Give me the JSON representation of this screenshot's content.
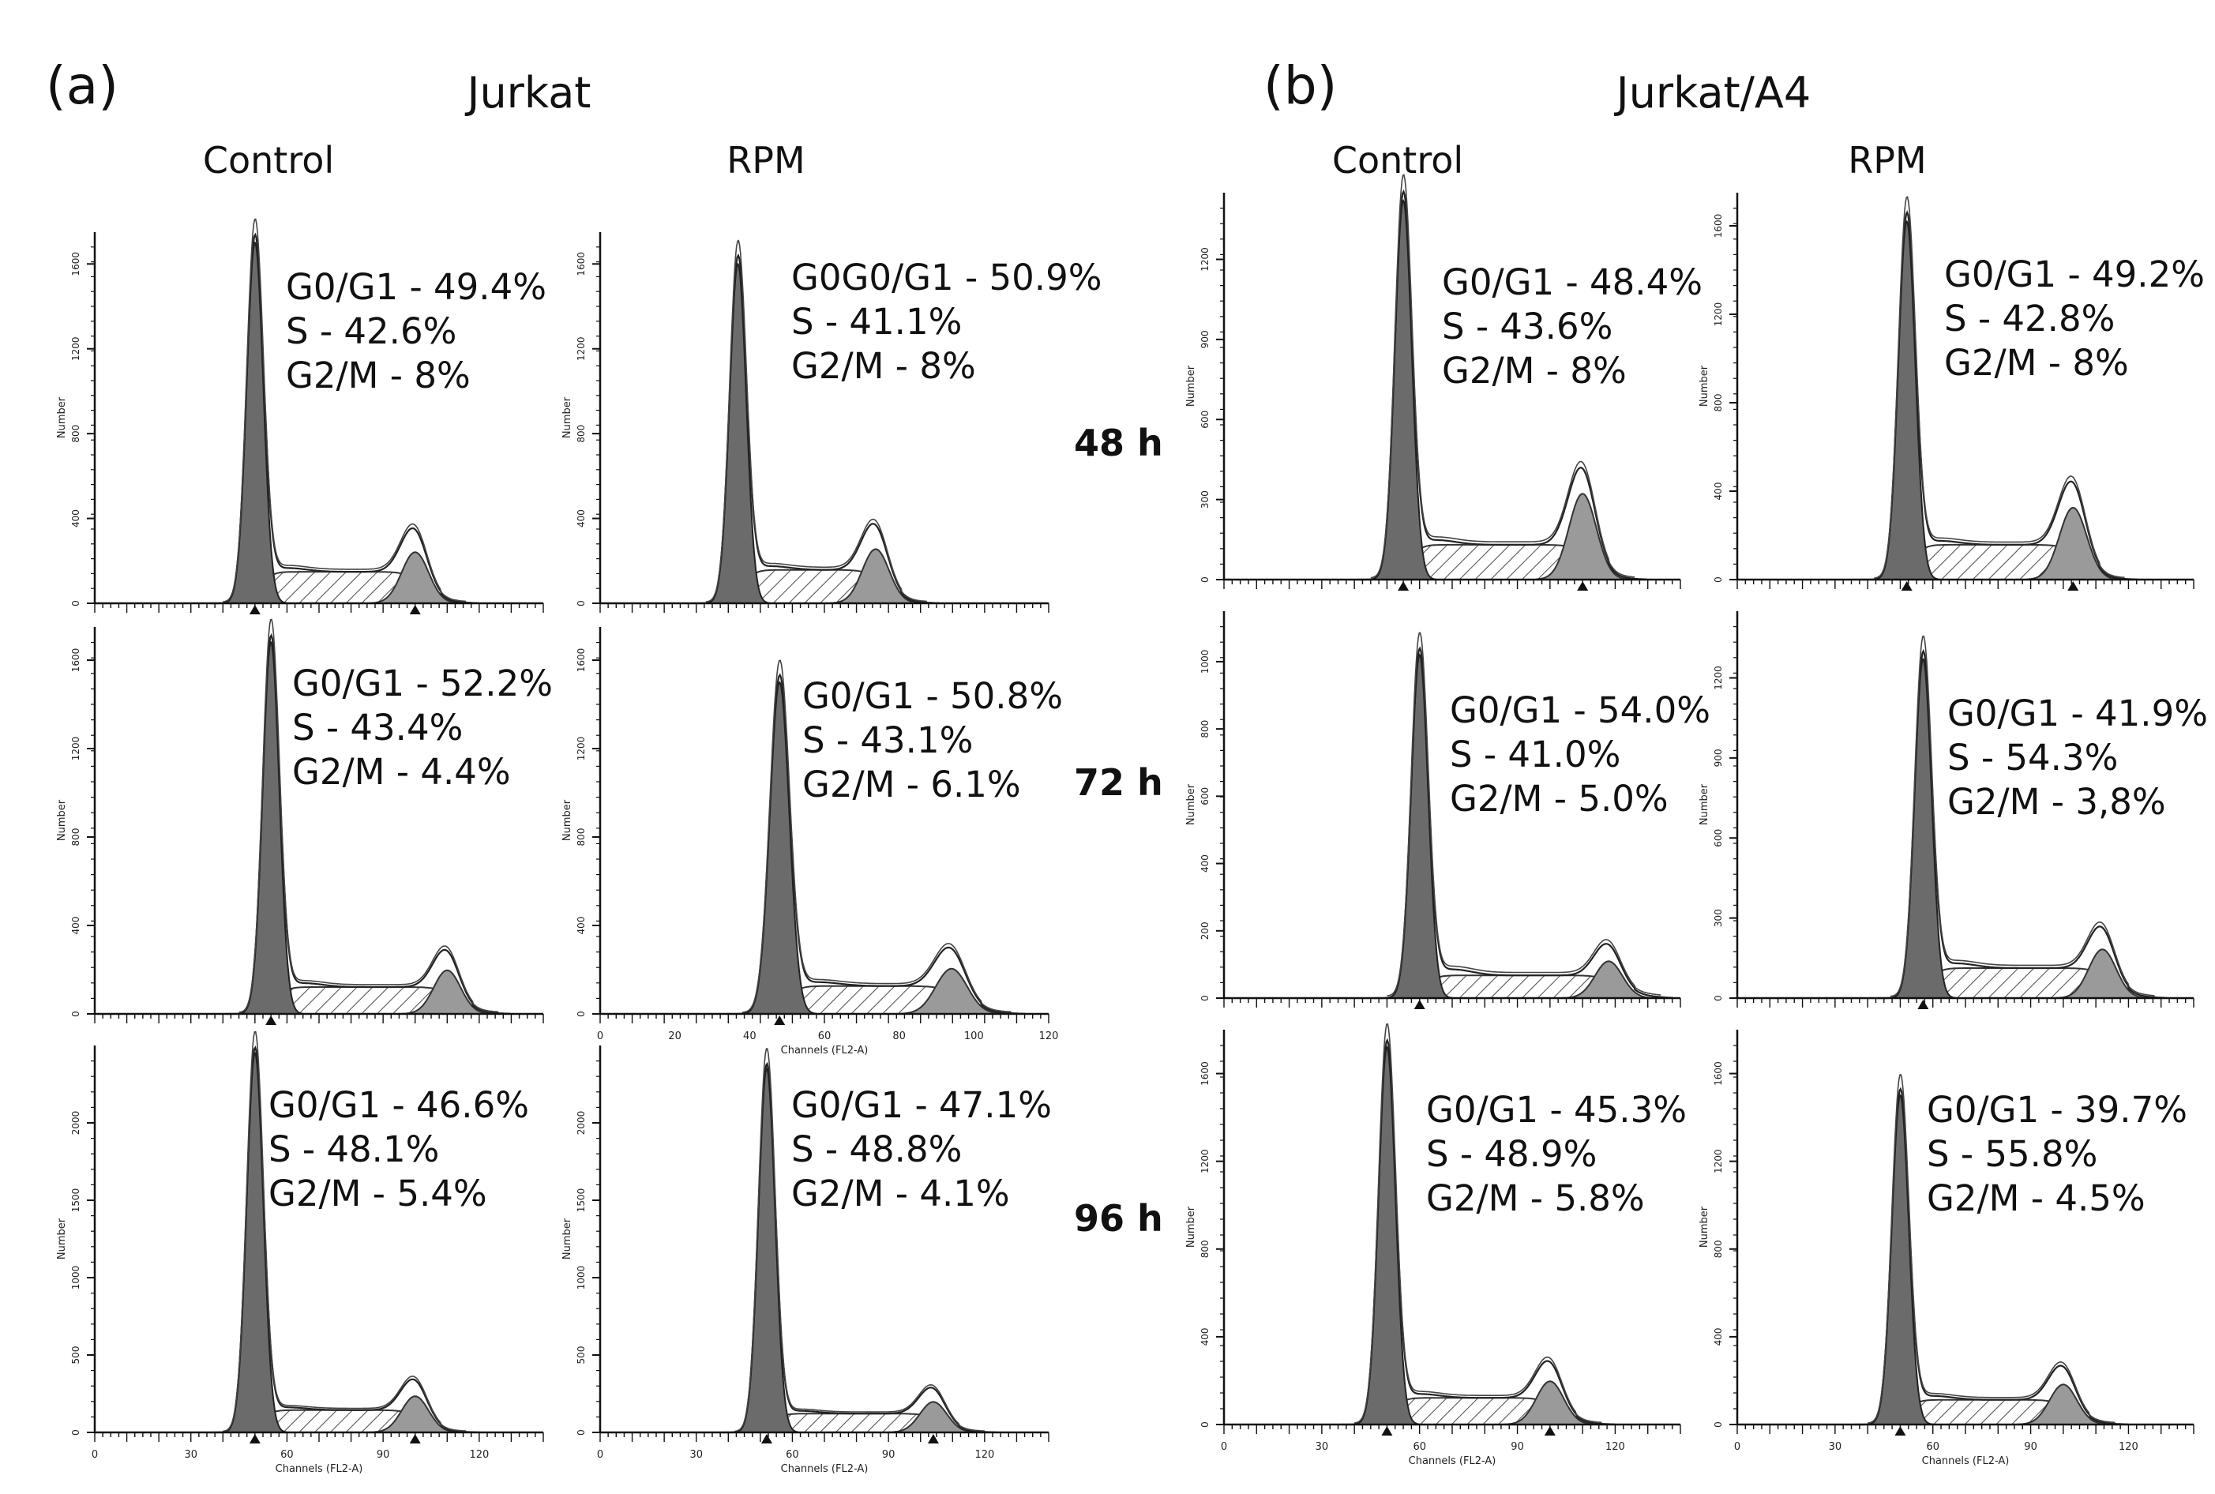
{
  "figure": {
    "panels": [
      {
        "letter": "(a)",
        "title": "Jurkat",
        "columns": [
          "Control",
          "RPM"
        ],
        "plots": [
          {
            "id": "a-control-48",
            "y_ticks": [
              "0",
              "400",
              "800",
              "1200",
              "1600"
            ],
            "y_max": 1750,
            "x_ticks": [],
            "x_label": "",
            "g1": 50,
            "g2": 100,
            "g1_height": 1700,
            "g2_height": 330,
            "markers": [
              50,
              100
            ],
            "stats": [
              "G0/G1 - 49.4%",
              "S - 42.6%",
              "G2/M - 8%"
            ]
          },
          {
            "id": "a-rpm-48",
            "y_ticks": [
              "0",
              "400",
              "800",
              "1200",
              "1600"
            ],
            "y_max": 1750,
            "x_ticks": [],
            "x_label": "",
            "g1": 43,
            "g2": 86,
            "g1_height": 1600,
            "g2_height": 350,
            "markers": [],
            "stats": [
              "G0G0/G1 - 50.9%",
              "S - 41.1%",
              "G2/M - 8%"
            ]
          },
          {
            "id": "a-control-72",
            "y_ticks": [
              "0",
              "400",
              "800",
              "1200",
              "1600"
            ],
            "y_max": 1750,
            "x_ticks": [],
            "x_label": "",
            "g1": 55,
            "g2": 110,
            "g1_height": 1680,
            "g2_height": 270,
            "markers": [
              55
            ],
            "stats": [
              "G0/G1 - 52.2%",
              "S - 43.4%",
              "G2/M - 4.4%"
            ]
          },
          {
            "id": "a-rpm-72",
            "y_ticks": [
              "0",
              "400",
              "800",
              "1200",
              "1600"
            ],
            "y_max": 1750,
            "x_ticks": [
              "0",
              "20",
              "40",
              "60",
              "80",
              "100",
              "120"
            ],
            "x_label": "Channels (FL2-A)",
            "x_max": 120,
            "g1": 48,
            "g2": 94,
            "g1_height": 1500,
            "g2_height": 280,
            "markers": [
              48
            ],
            "stats": [
              "G0/G1 - 50.8%",
              "S - 43.1%",
              "G2/M - 6.1%"
            ]
          },
          {
            "id": "a-control-96",
            "y_ticks": [
              "0",
              "500",
              "1000",
              "1500",
              "2000"
            ],
            "y_max": 2500,
            "x_ticks": [
              "0",
              "30",
              "60",
              "90",
              "120"
            ],
            "x_label": "Channels (FL2-A)",
            "x_max": 140,
            "g1": 50,
            "g2": 100,
            "g1_height": 2450,
            "g2_height": 320,
            "markers": [
              50,
              100
            ],
            "stats": [
              "G0/G1 - 46.6%",
              "S - 48.1%",
              "G2/M - 5.4%"
            ]
          },
          {
            "id": "a-rpm-96",
            "y_ticks": [
              "0",
              "500",
              "1000",
              "1500",
              "2000"
            ],
            "y_max": 2500,
            "x_ticks": [
              "0",
              "30",
              "60",
              "90",
              "120"
            ],
            "x_label": "Channels (FL2-A)",
            "x_max": 140,
            "g1": 52,
            "g2": 104,
            "g1_height": 2350,
            "g2_height": 270,
            "markers": [
              52,
              104
            ],
            "stats": [
              "G0/G1 - 47.1%",
              "S - 48.8%",
              "G2/M - 4.1%"
            ]
          }
        ]
      },
      {
        "letter": "(b)",
        "title": "Jurkat/A4",
        "columns": [
          "Control",
          "RPM"
        ],
        "plots": [
          {
            "id": "b-control-48",
            "y_ticks": [
              "0",
              "300",
              "600",
              "900",
              "1200"
            ],
            "y_max": 1450,
            "x_ticks": [],
            "x_label": "",
            "g1": 55,
            "g2": 110,
            "g1_height": 1420,
            "g2_height": 400,
            "markers": [
              55,
              110
            ],
            "stats": [
              "G0/G1 - 48.4%",
              "S - 43.6%",
              "G2/M - 8%"
            ]
          },
          {
            "id": "b-rpm-48",
            "y_ticks": [
              "0",
              "400",
              "800",
              "1200",
              "1600"
            ],
            "y_max": 1750,
            "x_ticks": [],
            "x_label": "",
            "g1": 52,
            "g2": 103,
            "g1_height": 1620,
            "g2_height": 420,
            "markers": [
              52,
              103
            ],
            "stats": [
              "G0/G1 - 49.2%",
              "S - 42.8%",
              "G2/M - 8%"
            ]
          },
          {
            "id": "b-control-72",
            "y_ticks": [
              "0",
              "200",
              "400",
              "600",
              "800",
              "1000"
            ],
            "y_max": 1150,
            "x_ticks": [],
            "x_label": "",
            "g1": 60,
            "g2": 118,
            "g1_height": 1020,
            "g2_height": 150,
            "markers": [
              60
            ],
            "stats": [
              "G0/G1 - 54.0%",
              "S - 41.0%",
              "G2/M - 5.0%"
            ]
          },
          {
            "id": "b-rpm-72",
            "y_ticks": [
              "0",
              "300",
              "600",
              "900",
              "1200"
            ],
            "y_max": 1450,
            "x_ticks": [],
            "x_label": "",
            "g1": 57,
            "g2": 112,
            "g1_height": 1270,
            "g2_height": 250,
            "markers": [
              57
            ],
            "stats": [
              "G0/G1 - 41.9%",
              "S - 54.3%",
              "G2/M - 3,8%"
            ]
          },
          {
            "id": "b-control-96",
            "y_ticks": [
              "0",
              "400",
              "800",
              "1200",
              "1600"
            ],
            "y_max": 1800,
            "x_ticks": [
              "0",
              "30",
              "60",
              "90",
              "120"
            ],
            "x_label": "Channels (FL2-A)",
            "x_max": 140,
            "g1": 50,
            "g2": 100,
            "g1_height": 1720,
            "g2_height": 270,
            "markers": [
              50,
              100
            ],
            "stats": [
              "G0/G1 - 45.3%",
              "S - 48.9%",
              "G2/M - 5.8%"
            ]
          },
          {
            "id": "b-rpm-96",
            "y_ticks": [
              "0",
              "400",
              "800",
              "1200",
              "1600"
            ],
            "y_max": 1800,
            "x_ticks": [
              "0",
              "30",
              "60",
              "90",
              "120"
            ],
            "x_label": "Channels (FL2-A)",
            "x_max": 140,
            "g1": 50,
            "g2": 100,
            "g1_height": 1500,
            "g2_height": 250,
            "markers": [
              50
            ],
            "stats": [
              "G0/G1 - 39.7%",
              "S - 55.8%",
              "G2/M - 4.5%"
            ]
          }
        ]
      }
    ],
    "time_labels": [
      "48 h",
      "72 h",
      "96 h"
    ],
    "y_axis_label": "Number"
  },
  "chart_data": {
    "type": "histogram",
    "title": "",
    "xlabel": "Channels (FL2-A)",
    "ylabel": "Number",
    "series": [
      {
        "name": "Jurkat Control 48 h",
        "values": {
          "G0/G1": 49.4,
          "S": 42.6,
          "G2/M": 8
        }
      },
      {
        "name": "Jurkat RPM 48 h",
        "values": {
          "G0/G1": 50.9,
          "S": 41.1,
          "G2/M": 8
        }
      },
      {
        "name": "Jurkat Control 72 h",
        "values": {
          "G0/G1": 52.2,
          "S": 43.4,
          "G2/M": 4.4
        }
      },
      {
        "name": "Jurkat RPM 72 h",
        "values": {
          "G0/G1": 50.8,
          "S": 43.1,
          "G2/M": 6.1
        }
      },
      {
        "name": "Jurkat Control 96 h",
        "values": {
          "G0/G1": 46.6,
          "S": 48.1,
          "G2/M": 5.4
        }
      },
      {
        "name": "Jurkat RPM 96 h",
        "values": {
          "G0/G1": 47.1,
          "S": 48.8,
          "G2/M": 4.1
        }
      },
      {
        "name": "Jurkat/A4 Control 48 h",
        "values": {
          "G0/G1": 48.4,
          "S": 43.6,
          "G2/M": 8
        }
      },
      {
        "name": "Jurkat/A4 RPM 48 h",
        "values": {
          "G0/G1": 49.2,
          "S": 42.8,
          "G2/M": 8
        }
      },
      {
        "name": "Jurkat/A4 Control 72 h",
        "values": {
          "G0/G1": 54.0,
          "S": 41.0,
          "G2/M": 5.0
        }
      },
      {
        "name": "Jurkat/A4 RPM 72 h",
        "values": {
          "G0/G1": 41.9,
          "S": 54.3,
          "G2/M": 3.8
        }
      },
      {
        "name": "Jurkat/A4 Control 96 h",
        "values": {
          "G0/G1": 45.3,
          "S": 48.9,
          "G2/M": 5.8
        }
      },
      {
        "name": "Jurkat/A4 RPM 96 h",
        "values": {
          "G0/G1": 39.7,
          "S": 55.8,
          "G2/M": 4.5
        }
      }
    ]
  }
}
